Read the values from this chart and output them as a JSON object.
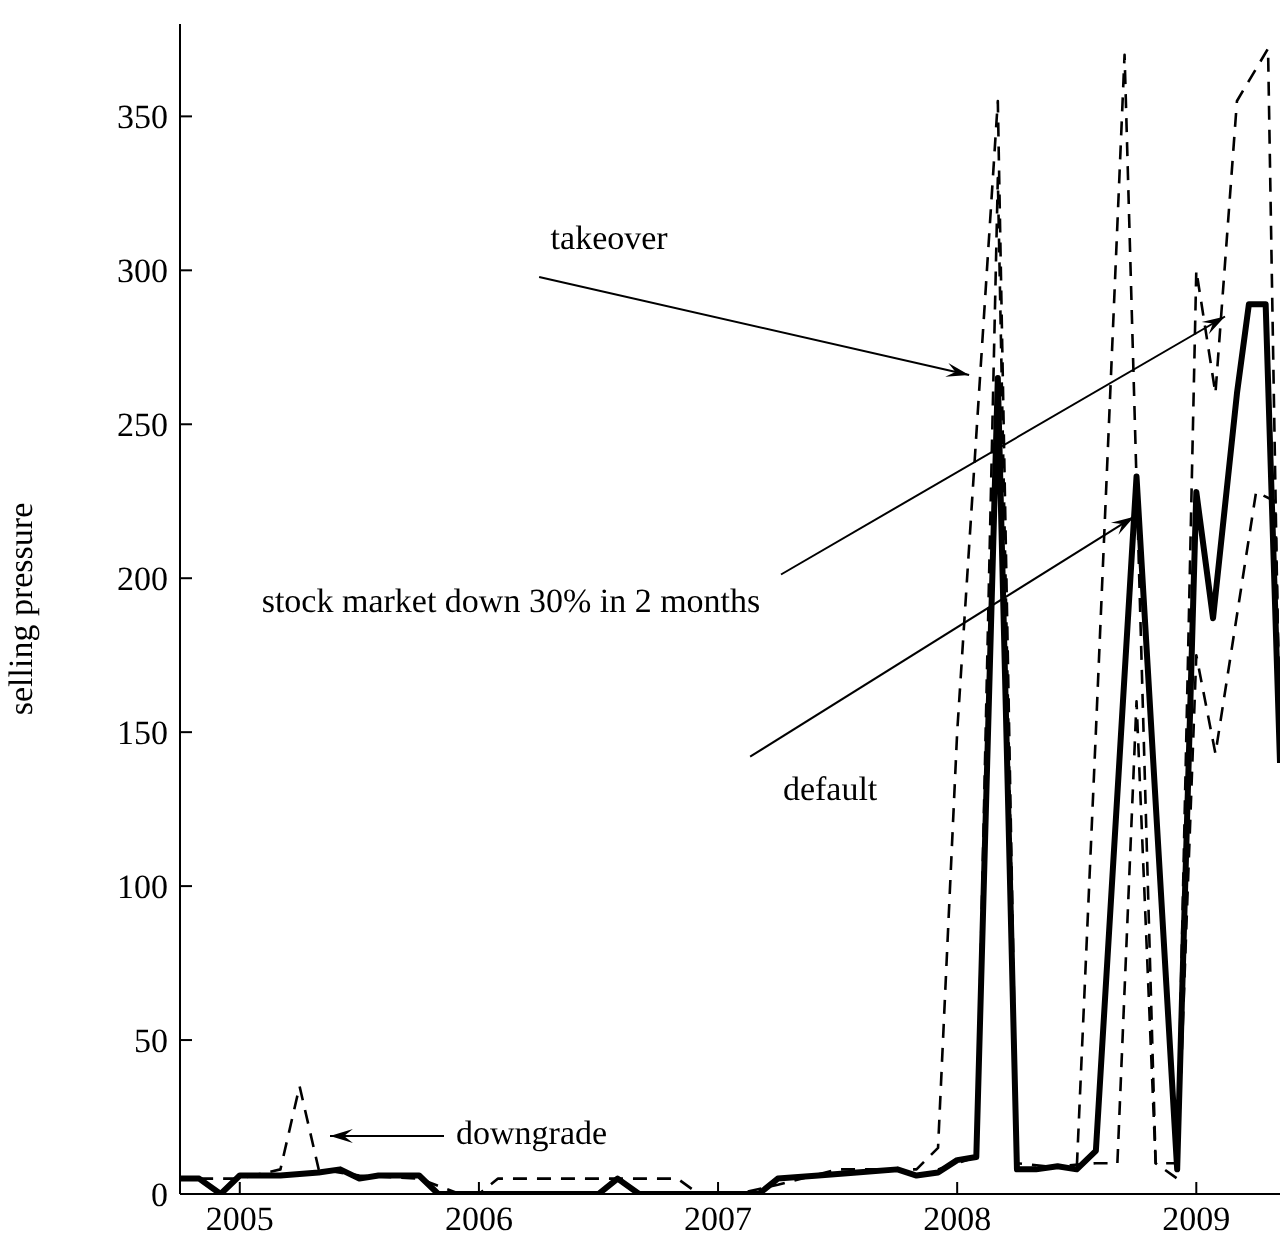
{
  "chart_data": {
    "type": "line",
    "ylabel": "selling pressure",
    "xlim": [
      2004.75,
      2009.35
    ],
    "xticks": [
      2005,
      2006,
      2007,
      2008,
      2009
    ],
    "ylim": [
      0,
      380
    ],
    "yticks": [
      0,
      50,
      100,
      150,
      200,
      250,
      300,
      350
    ],
    "marker": "none",
    "annotations": [
      {
        "text": "takeover",
        "x": 2008.05,
        "y": 266
      },
      {
        "text": "stock market down 30% in 2 months",
        "x": 2009.12,
        "y": 285
      },
      {
        "text": "default",
        "x": 2008.74,
        "y": 220
      },
      "downgrade"
    ],
    "series": [
      {
        "color": "#000000",
        "line_style": "solid",
        "x": [
          2004.75,
          2004.83,
          2004.92,
          2005.0,
          2005.17,
          2005.33,
          2005.42,
          2005.5,
          2005.58,
          2005.75,
          2005.83,
          2006.5,
          2006.58,
          2006.67,
          2007.17,
          2007.25,
          2007.42,
          2007.58,
          2007.75,
          2007.83,
          2007.92,
          2008.0,
          2008.08,
          2008.17,
          2008.25,
          2008.33,
          2008.42,
          2008.5,
          2008.58,
          2008.75,
          2008.92,
          2009.0,
          2009.07,
          2009.17,
          2009.22,
          2009.29,
          2009.35
        ],
        "values": [
          5,
          5,
          0,
          6,
          6,
          7,
          8,
          5,
          6,
          6,
          0,
          0,
          5,
          0,
          0,
          5,
          6,
          7,
          8,
          6,
          7,
          11,
          12,
          265,
          8,
          8,
          9,
          8,
          14,
          233,
          8,
          228,
          187,
          260,
          289,
          289,
          140
        ]
      },
      {
        "color": "#000000",
        "line_style": "dashed",
        "x": [
          2004.83,
          2005.0,
          2005.17,
          2005.25,
          2005.33,
          2005.5,
          2005.75,
          2005.92,
          2006.0,
          2006.08,
          2006.5,
          2006.83,
          2006.92,
          2007.08,
          2007.25,
          2007.5,
          2007.83,
          2007.92,
          2008.0,
          2008.17,
          2008.25,
          2008.5,
          2008.58,
          2008.7,
          2008.83,
          2008.92,
          2009.0,
          2009.08,
          2009.17,
          2009.3,
          2009.35
        ],
        "values": [
          5,
          5,
          8,
          35,
          8,
          6,
          5,
          0,
          0,
          5,
          5,
          5,
          0,
          0,
          3,
          8,
          8,
          15,
          150,
          355,
          10,
          8,
          150,
          370,
          10,
          10,
          300,
          260,
          355,
          372,
          140
        ]
      },
      {
        "color": "#000000",
        "line_style": "dashed",
        "x": [
          2007.92,
          2008.08,
          2008.17,
          2008.25,
          2008.58,
          2008.67,
          2008.75,
          2008.83,
          2008.92,
          2009.0,
          2009.08,
          2009.25,
          2009.33,
          2009.35
        ],
        "values": [
          8,
          12,
          330,
          8,
          10,
          10,
          160,
          10,
          5,
          175,
          143,
          228,
          225,
          150
        ]
      }
    ]
  }
}
